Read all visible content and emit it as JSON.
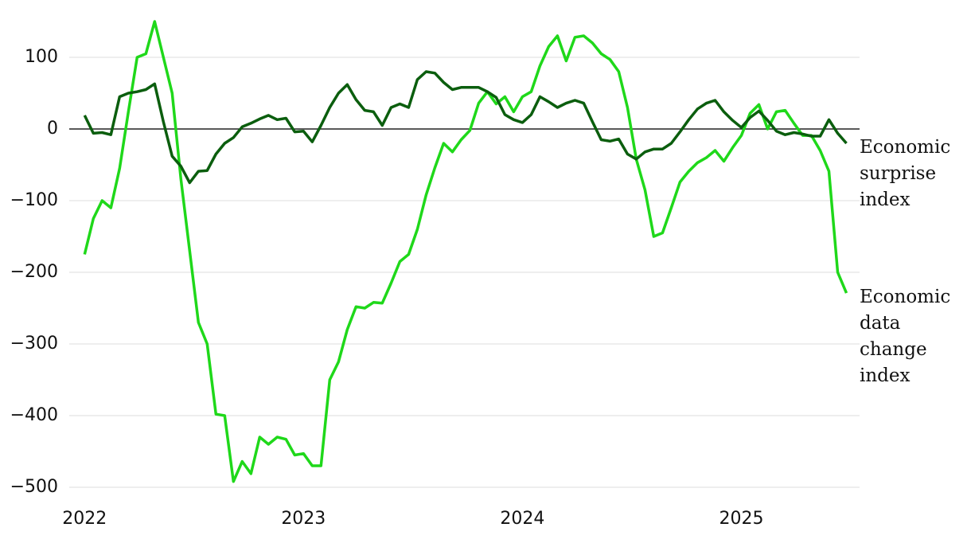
{
  "chart_data": {
    "type": "line",
    "x": [
      2022,
      2022.04,
      2022.08,
      2022.12,
      2022.16,
      2022.2,
      2022.24,
      2022.28,
      2022.32,
      2022.36,
      2022.4,
      2022.44,
      2022.48,
      2022.52,
      2022.56,
      2022.6,
      2022.64,
      2022.68,
      2022.72,
      2022.76,
      2022.8,
      2022.84,
      2022.88,
      2022.92,
      2022.96,
      2023,
      2023.04,
      2023.08,
      2023.12,
      2023.16,
      2023.2,
      2023.24,
      2023.28,
      2023.32,
      2023.36,
      2023.4,
      2023.44,
      2023.48,
      2023.52,
      2023.56,
      2023.6,
      2023.64,
      2023.68,
      2023.72,
      2023.76,
      2023.8,
      2023.84,
      2023.88,
      2023.92,
      2023.96,
      2024,
      2024.04,
      2024.08,
      2024.12,
      2024.16,
      2024.2,
      2024.24,
      2024.28,
      2024.32,
      2024.36,
      2024.4,
      2024.44,
      2024.48,
      2024.52,
      2024.56,
      2024.6,
      2024.64,
      2024.68,
      2024.72,
      2024.76,
      2024.8,
      2024.84,
      2024.88,
      2024.92,
      2024.96,
      2025,
      2025.04,
      2025.08,
      2025.12,
      2025.16,
      2025.2,
      2025.24,
      2025.28,
      2025.32,
      2025.36,
      2025.4,
      2025.44,
      2025.48
    ],
    "series": [
      {
        "name": "Economic surprise index",
        "color": "#0b5e0e",
        "values": [
          19,
          -6,
          -5,
          -8,
          45,
          50,
          52,
          55,
          63,
          10,
          -38,
          -52,
          -75,
          -59,
          -58,
          -35,
          -20,
          -12,
          3,
          8,
          14,
          19,
          13,
          15,
          -4,
          -3,
          -18,
          5,
          30,
          50,
          62,
          41,
          26,
          24,
          5,
          30,
          35,
          30,
          69,
          80,
          78,
          65,
          55,
          58,
          58,
          58,
          52,
          44,
          20,
          13,
          9,
          20,
          45,
          38,
          30,
          36,
          40,
          36,
          10,
          -15,
          -17,
          -14,
          -35,
          -42,
          -32,
          -28,
          -28,
          -20,
          -4,
          13,
          28,
          36,
          40,
          24,
          12,
          2,
          16,
          25,
          12,
          -3,
          -8,
          -5,
          -7,
          -10,
          -10,
          13,
          -6,
          -20
        ]
      },
      {
        "name": "Economic data change index",
        "color": "#1fd81a",
        "values": [
          -175,
          -125,
          -100,
          -110,
          -55,
          24,
          100,
          105,
          150,
          100,
          50,
          -70,
          -170,
          -270,
          -300,
          -398,
          -400,
          -492,
          -464,
          -481,
          -430,
          -440,
          -430,
          -433,
          -455,
          -453,
          -470,
          -470,
          -350,
          -325,
          -280,
          -248,
          -250,
          -242,
          -243,
          -215,
          -185,
          -175,
          -140,
          -92,
          -54,
          -20,
          -32,
          -15,
          -2,
          36,
          52,
          35,
          45,
          24,
          45,
          52,
          88,
          115,
          130,
          95,
          128,
          130,
          120,
          105,
          97,
          80,
          30,
          -42,
          -85,
          -150,
          -145,
          -110,
          -74,
          -59,
          -47,
          -40,
          -30,
          -45,
          -26,
          -9,
          22,
          34,
          0,
          24,
          26,
          8,
          -9,
          -9,
          -30,
          -59,
          -200,
          -229
        ]
      }
    ],
    "xlim": [
      2021.93,
      2025.54
    ],
    "xticks": [
      2022,
      2023,
      2024,
      2025
    ],
    "ylim": [
      -515,
      165
    ],
    "yticks": [
      {
        "value": -500,
        "label": "−500"
      },
      {
        "value": -400,
        "label": "−400"
      },
      {
        "value": -300,
        "label": "−300"
      },
      {
        "value": -200,
        "label": "−200"
      },
      {
        "value": -100,
        "label": "−100"
      },
      0,
      100
    ],
    "grid": true
  }
}
